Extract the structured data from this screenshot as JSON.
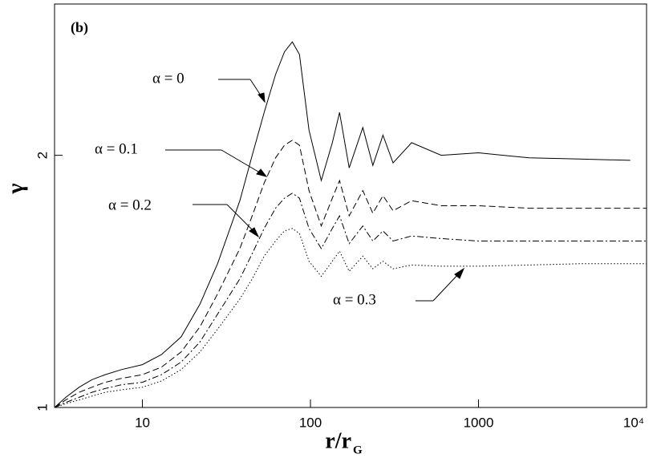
{
  "chart_data": {
    "type": "line",
    "panel_label": "(b)",
    "x_label": "r/r",
    "x_label_sub": "G",
    "y_label": "γ",
    "log_x": true,
    "xlim": [
      3,
      10000
    ],
    "xticks": [
      10,
      100,
      1000,
      {
        "value": 10000,
        "label": "10⁴"
      }
    ],
    "ylim": [
      1,
      2.6
    ],
    "yticks": [
      1,
      2
    ],
    "x": [
      3,
      3.5,
      4.2,
      5,
      6,
      7.5,
      10,
      13,
      17,
      22,
      28,
      38,
      45,
      53,
      62,
      70,
      78,
      86,
      98,
      116,
      135,
      149,
      170,
      205,
      235,
      270,
      310,
      400,
      600,
      1000,
      2000,
      4000,
      8000,
      10000
    ],
    "series": [
      {
        "name": "α = 0",
        "color": "#000000",
        "dash": "solid",
        "values": [
          1.0,
          1.04,
          1.08,
          1.11,
          1.13,
          1.15,
          1.17,
          1.21,
          1.28,
          1.41,
          1.57,
          1.82,
          2.0,
          2.17,
          2.32,
          2.41,
          2.45,
          2.4,
          2.1,
          1.9,
          2.05,
          2.17,
          1.95,
          2.11,
          1.96,
          2.08,
          1.97,
          2.05,
          2.0,
          2.01,
          1.99,
          1.985,
          1.98,
          null
        ]
      },
      {
        "name": "α = 0.1",
        "color": "#000000",
        "dash": "dashed",
        "values": [
          1.0,
          1.03,
          1.06,
          1.08,
          1.1,
          1.115,
          1.13,
          1.16,
          1.22,
          1.32,
          1.45,
          1.63,
          1.76,
          1.89,
          1.99,
          2.04,
          2.06,
          2.04,
          1.86,
          1.72,
          1.83,
          1.9,
          1.76,
          1.86,
          1.77,
          1.84,
          1.78,
          1.82,
          1.8,
          1.8,
          1.79,
          1.79,
          1.79,
          1.79
        ]
      },
      {
        "name": "α =  0.2",
        "color": "#000000",
        "dash": "dashdot",
        "values": [
          1.0,
          1.02,
          1.04,
          1.06,
          1.075,
          1.09,
          1.1,
          1.13,
          1.18,
          1.26,
          1.37,
          1.51,
          1.61,
          1.71,
          1.79,
          1.83,
          1.85,
          1.83,
          1.71,
          1.63,
          1.71,
          1.76,
          1.65,
          1.72,
          1.66,
          1.7,
          1.66,
          1.68,
          1.67,
          1.66,
          1.66,
          1.66,
          1.66,
          1.66
        ]
      },
      {
        "name": "α = 0.3",
        "color": "#000000",
        "dash": "dotted",
        "values": [
          1.0,
          1.015,
          1.03,
          1.045,
          1.06,
          1.07,
          1.08,
          1.105,
          1.15,
          1.22,
          1.31,
          1.43,
          1.51,
          1.6,
          1.66,
          1.7,
          1.71,
          1.69,
          1.58,
          1.52,
          1.58,
          1.62,
          1.54,
          1.6,
          1.55,
          1.58,
          1.55,
          1.565,
          1.56,
          1.56,
          1.565,
          1.57,
          1.57,
          1.57
        ]
      }
    ]
  }
}
